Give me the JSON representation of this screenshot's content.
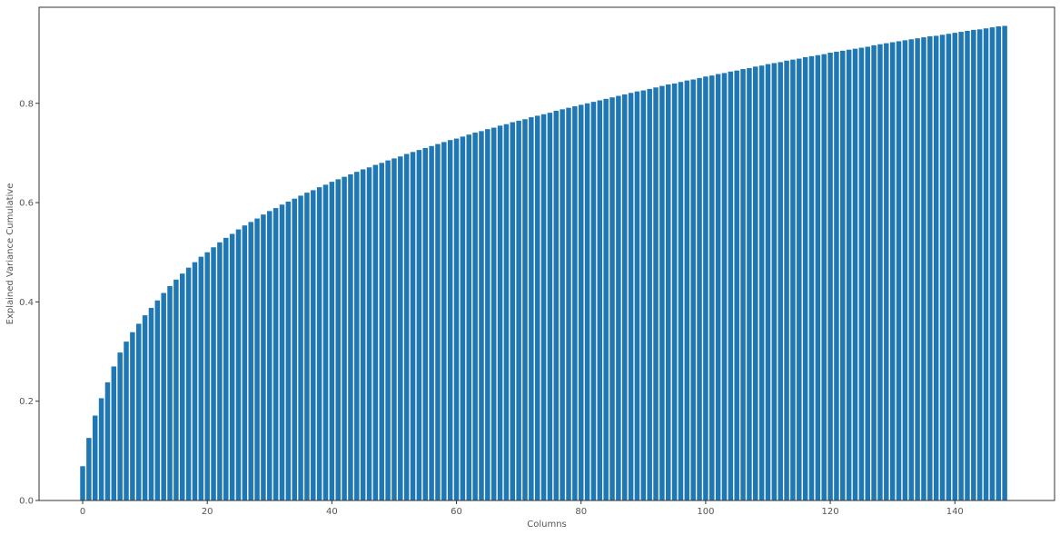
{
  "chart_data": {
    "type": "bar",
    "title": "",
    "xlabel": "Columns",
    "ylabel": "Explained Variance Cumulative",
    "xlim": [
      -7,
      156
    ],
    "ylim": [
      0,
      0.9935
    ],
    "xticks": [
      0,
      20,
      40,
      60,
      80,
      100,
      120,
      140
    ],
    "yticks": [
      0.0,
      0.2,
      0.4,
      0.6,
      0.8
    ],
    "xtick_labels": [
      "0",
      "20",
      "40",
      "60",
      "80",
      "100",
      "120",
      "140"
    ],
    "ytick_labels": [
      "0.0",
      "0.2",
      "0.4",
      "0.6",
      "0.8"
    ],
    "grid": false,
    "bar_color": "#1f77b4",
    "x": [
      0,
      1,
      2,
      3,
      4,
      5,
      6,
      7,
      8,
      9,
      10,
      11,
      12,
      13,
      14,
      15,
      16,
      17,
      18,
      19,
      20,
      21,
      22,
      23,
      24,
      25,
      26,
      27,
      28,
      29,
      30,
      31,
      32,
      33,
      34,
      35,
      36,
      37,
      38,
      39,
      40,
      41,
      42,
      43,
      44,
      45,
      46,
      47,
      48,
      49,
      50,
      51,
      52,
      53,
      54,
      55,
      56,
      57,
      58,
      59,
      60,
      61,
      62,
      63,
      64,
      65,
      66,
      67,
      68,
      69,
      70,
      71,
      72,
      73,
      74,
      75,
      76,
      77,
      78,
      79,
      80,
      81,
      82,
      83,
      84,
      85,
      86,
      87,
      88,
      89,
      90,
      91,
      92,
      93,
      94,
      95,
      96,
      97,
      98,
      99,
      100,
      101,
      102,
      103,
      104,
      105,
      106,
      107,
      108,
      109,
      110,
      111,
      112,
      113,
      114,
      115,
      116,
      117,
      118,
      119,
      120,
      121,
      122,
      123,
      124,
      125,
      126,
      127,
      128,
      129,
      130,
      131,
      132,
      133,
      134,
      135,
      136,
      137,
      138,
      139,
      140,
      141,
      142,
      143,
      144,
      145,
      146,
      147,
      148
    ],
    "values": [
      0.069,
      0.126,
      0.171,
      0.206,
      0.238,
      0.27,
      0.298,
      0.32,
      0.339,
      0.356,
      0.373,
      0.388,
      0.403,
      0.418,
      0.432,
      0.445,
      0.457,
      0.469,
      0.48,
      0.491,
      0.5,
      0.51,
      0.52,
      0.529,
      0.537,
      0.546,
      0.554,
      0.561,
      0.568,
      0.576,
      0.583,
      0.589,
      0.596,
      0.602,
      0.608,
      0.614,
      0.62,
      0.625,
      0.631,
      0.636,
      0.642,
      0.647,
      0.652,
      0.657,
      0.662,
      0.667,
      0.671,
      0.676,
      0.68,
      0.685,
      0.689,
      0.693,
      0.698,
      0.702,
      0.706,
      0.71,
      0.714,
      0.718,
      0.722,
      0.726,
      0.729,
      0.733,
      0.737,
      0.741,
      0.744,
      0.748,
      0.751,
      0.755,
      0.758,
      0.762,
      0.765,
      0.768,
      0.772,
      0.775,
      0.778,
      0.781,
      0.785,
      0.788,
      0.791,
      0.794,
      0.797,
      0.8,
      0.803,
      0.806,
      0.809,
      0.812,
      0.815,
      0.818,
      0.821,
      0.824,
      0.826,
      0.829,
      0.832,
      0.835,
      0.838,
      0.84,
      0.843,
      0.846,
      0.848,
      0.851,
      0.854,
      0.856,
      0.859,
      0.861,
      0.864,
      0.866,
      0.869,
      0.871,
      0.874,
      0.876,
      0.879,
      0.881,
      0.883,
      0.886,
      0.888,
      0.89,
      0.893,
      0.895,
      0.897,
      0.899,
      0.902,
      0.904,
      0.906,
      0.908,
      0.91,
      0.912,
      0.914,
      0.917,
      0.919,
      0.921,
      0.923,
      0.925,
      0.927,
      0.929,
      0.931,
      0.933,
      0.935,
      0.936,
      0.938,
      0.94,
      0.942,
      0.944,
      0.946,
      0.948,
      0.949,
      0.951,
      0.953,
      0.955,
      0.956
    ]
  }
}
